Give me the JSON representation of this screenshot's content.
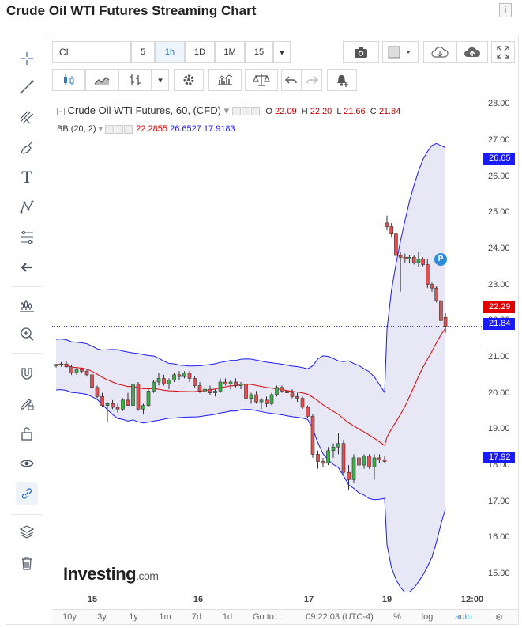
{
  "page": {
    "title": "Crude Oil WTI Futures Streaming Chart",
    "info_icon": "info-icon"
  },
  "toolbar": {
    "symbol": "CL",
    "intervals": [
      "5",
      "1h",
      "1D",
      "1M",
      "15"
    ],
    "active_interval": "1h",
    "icons": [
      "camera-icon",
      "color-square-icon",
      "cloud-download-icon",
      "cloud-upload-icon",
      "fullscreen-icon",
      "candlestick-icon",
      "line-chart-icon",
      "bar-style-icon",
      "settings-icon",
      "indicators-icon",
      "compare-icon",
      "undo-icon",
      "redo-icon",
      "alert-bell-icon"
    ]
  },
  "left_tools": [
    "crosshair-icon",
    "trendline-icon",
    "pitchfork-icon",
    "brush-icon",
    "text-icon",
    "pattern-icon",
    "fib-icon",
    "arrow-left-icon",
    "measure-icon",
    "zoom-in-icon",
    "magnet-icon",
    "lock-draw-icon",
    "unlock-icon",
    "eye-icon",
    "link-icon",
    "layers-icon",
    "trash-icon"
  ],
  "legend": {
    "name": "Crude Oil WTI Futures, 60, (CFD)",
    "o_label": "O",
    "o": "22.09",
    "h_label": "H",
    "h": "22.20",
    "l_label": "L",
    "l": "21.66",
    "c_label": "C",
    "c": "21.84",
    "bb_label": "BB (20, 2)",
    "bb_mid": "22.2855",
    "bb_upper": "26.6527",
    "bb_lower": "17.9183"
  },
  "price_labels": {
    "bb_upper": "26.65",
    "bb_mid": "22.29",
    "last": "21.84",
    "bb_lower": "17.92",
    "bb_color": "#1a1aff",
    "mid_color": "#e00000",
    "up_color": "#3fae49",
    "down_color": "#e54e4e"
  },
  "marker": {
    "label": "P"
  },
  "bottom_bar": {
    "ranges": [
      "10y",
      "3y",
      "1y",
      "1m",
      "7d",
      "1d"
    ],
    "goto": "Go to...",
    "time": "09:22:03 (UTC-4)",
    "percent": "%",
    "log": "log",
    "auto": "auto"
  },
  "logo": {
    "main": "Investing",
    "suffix": ".com"
  },
  "chart_data": {
    "type": "candlestick",
    "title": "Crude Oil WTI Futures, 60, (CFD)",
    "ylim": [
      14.5,
      28.2
    ],
    "y_ticks": [
      15,
      16,
      17,
      18,
      19,
      20,
      21,
      22,
      23,
      24,
      25,
      26,
      27,
      28
    ],
    "y_tick_labels": [
      "15.00",
      "16.00",
      "17.00",
      "18.00",
      "19.00",
      "20.00",
      "21.00",
      "22.00",
      "23.00",
      "24.00",
      "25.00",
      "26.00",
      "27.00",
      "28.00"
    ],
    "x_tick_labels": [
      "15",
      "16",
      "17",
      "19",
      "12:00"
    ],
    "last_price": 21.84,
    "candles": [
      [
        20.75,
        20.8,
        20.7,
        20.78
      ],
      [
        20.78,
        20.85,
        20.72,
        20.8
      ],
      [
        20.8,
        20.88,
        20.7,
        20.72
      ],
      [
        20.72,
        20.78,
        20.5,
        20.55
      ],
      [
        20.55,
        20.7,
        20.5,
        20.65
      ],
      [
        20.65,
        20.7,
        20.55,
        20.6
      ],
      [
        20.6,
        20.65,
        20.45,
        20.5
      ],
      [
        20.5,
        20.55,
        20.1,
        20.15
      ],
      [
        20.15,
        20.2,
        19.85,
        19.9
      ],
      [
        19.9,
        20.0,
        19.6,
        19.65
      ],
      [
        19.65,
        19.75,
        19.2,
        19.7
      ],
      [
        19.7,
        19.8,
        19.55,
        19.6
      ],
      [
        19.6,
        19.7,
        19.45,
        19.55
      ],
      [
        19.55,
        19.85,
        19.5,
        19.8
      ],
      [
        19.8,
        20.0,
        19.7,
        19.65
      ],
      [
        19.65,
        20.3,
        19.6,
        20.25
      ],
      [
        20.25,
        20.3,
        19.5,
        19.55
      ],
      [
        19.55,
        19.7,
        19.4,
        19.65
      ],
      [
        19.65,
        20.1,
        19.6,
        20.05
      ],
      [
        20.05,
        20.35,
        20.0,
        20.3
      ],
      [
        20.3,
        20.55,
        20.2,
        20.4
      ],
      [
        20.4,
        20.5,
        20.2,
        20.25
      ],
      [
        20.25,
        20.4,
        20.1,
        20.35
      ],
      [
        20.35,
        20.55,
        20.3,
        20.5
      ],
      [
        20.5,
        20.6,
        20.35,
        20.45
      ],
      [
        20.45,
        20.6,
        20.4,
        20.55
      ],
      [
        20.55,
        20.6,
        20.3,
        20.4
      ],
      [
        20.4,
        20.45,
        20.15,
        20.2
      ],
      [
        20.2,
        20.3,
        20.0,
        20.05
      ],
      [
        20.05,
        20.15,
        19.9,
        20.1
      ],
      [
        20.1,
        20.2,
        19.95,
        20.0
      ],
      [
        20.0,
        20.1,
        19.9,
        20.05
      ],
      [
        20.05,
        20.4,
        20.0,
        20.3
      ],
      [
        20.3,
        20.4,
        20.2,
        20.25
      ],
      [
        20.25,
        20.35,
        20.1,
        20.3
      ],
      [
        20.3,
        20.4,
        20.15,
        20.2
      ],
      [
        20.2,
        20.3,
        20.1,
        20.25
      ],
      [
        20.25,
        20.3,
        19.8,
        19.85
      ],
      [
        19.85,
        20.0,
        19.7,
        19.95
      ],
      [
        19.95,
        20.05,
        19.7,
        19.75
      ],
      [
        19.75,
        19.85,
        19.55,
        19.8
      ],
      [
        19.8,
        19.9,
        19.6,
        19.7
      ],
      [
        19.7,
        20.0,
        19.65,
        19.95
      ],
      [
        19.95,
        20.2,
        19.9,
        20.15
      ],
      [
        20.15,
        20.2,
        20.0,
        20.05
      ],
      [
        20.05,
        20.1,
        19.9,
        20.0
      ],
      [
        20.0,
        20.1,
        19.85,
        19.9
      ],
      [
        19.9,
        20.0,
        19.75,
        19.85
      ],
      [
        19.85,
        19.9,
        19.55,
        19.6
      ],
      [
        19.6,
        19.65,
        19.3,
        19.35
      ],
      [
        19.35,
        19.4,
        18.2,
        18.3
      ],
      [
        18.3,
        18.4,
        17.9,
        18.1
      ],
      [
        18.1,
        18.2,
        17.95,
        18.05
      ],
      [
        18.05,
        18.5,
        18.0,
        18.4
      ],
      [
        18.4,
        18.6,
        18.2,
        18.5
      ],
      [
        18.5,
        18.9,
        18.3,
        18.6
      ],
      [
        18.6,
        18.7,
        17.7,
        17.8
      ],
      [
        17.8,
        18.0,
        17.3,
        17.6
      ],
      [
        17.6,
        18.3,
        17.5,
        18.2
      ],
      [
        18.2,
        18.3,
        17.9,
        18.0
      ],
      [
        18.0,
        18.3,
        17.9,
        18.25
      ],
      [
        18.25,
        18.3,
        17.9,
        17.95
      ],
      [
        17.95,
        18.3,
        17.6,
        18.2
      ],
      [
        18.2,
        18.3,
        18.05,
        18.15
      ],
      [
        18.15,
        18.25,
        18.05,
        18.1
      ],
      [
        24.7,
        24.9,
        24.5,
        24.6
      ],
      [
        24.6,
        24.7,
        24.3,
        24.4
      ],
      [
        24.4,
        24.45,
        23.75,
        23.8
      ],
      [
        23.8,
        23.9,
        22.8,
        23.75
      ],
      [
        23.75,
        23.85,
        23.6,
        23.7
      ],
      [
        23.7,
        23.8,
        23.6,
        23.75
      ],
      [
        23.75,
        23.8,
        23.55,
        23.6
      ],
      [
        23.6,
        23.9,
        23.5,
        23.7
      ],
      [
        23.7,
        23.75,
        23.5,
        23.55
      ],
      [
        23.55,
        23.7,
        22.9,
        23.0
      ],
      [
        23.0,
        23.05,
        22.8,
        22.9
      ],
      [
        22.9,
        22.95,
        22.5,
        22.55
      ],
      [
        22.55,
        22.6,
        21.9,
        22.0
      ],
      [
        22.09,
        22.2,
        21.66,
        21.84
      ]
    ]
  }
}
